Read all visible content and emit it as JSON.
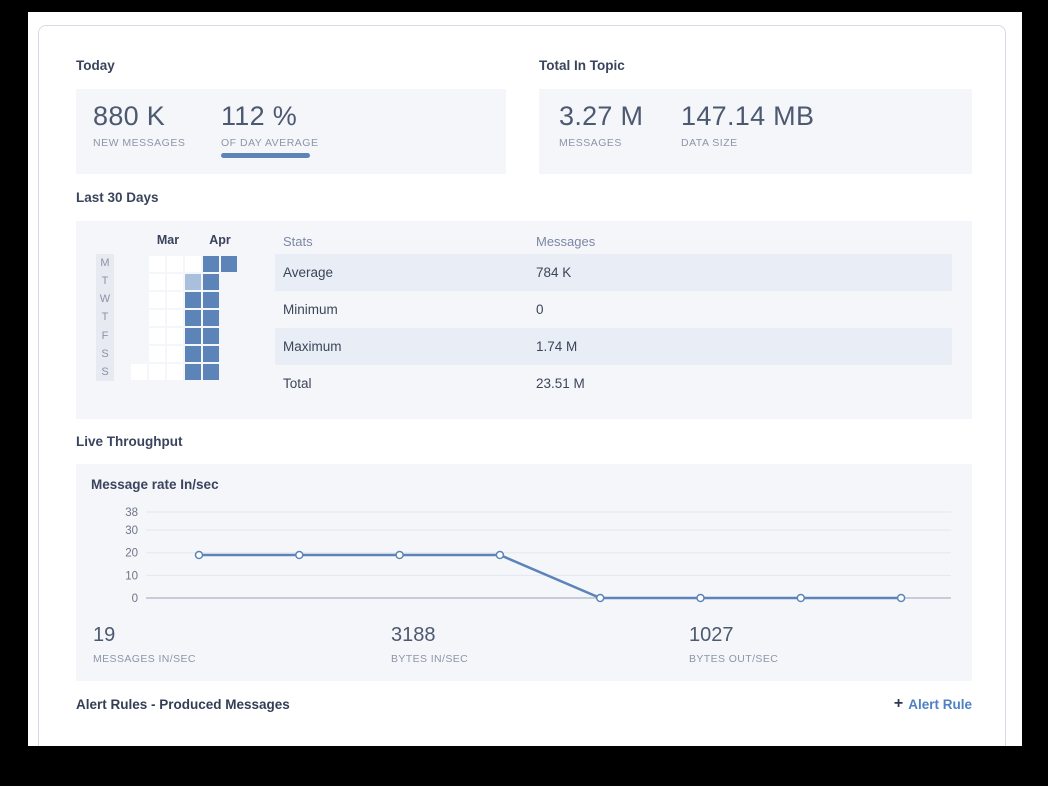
{
  "colors": {
    "accent_blue": "#5c84b8",
    "heat_low": "#ffffff",
    "heat_mid": "#a9c0dc",
    "heat_high": "#5c84b8",
    "link_blue": "#4d80c4",
    "panel_bg": "#f4f6fa",
    "row_tint": "#e9edf6"
  },
  "today": {
    "heading": "Today",
    "stats": [
      {
        "value": "880 K",
        "label": "NEW MESSAGES"
      },
      {
        "value": "112 %",
        "label": "OF DAY AVERAGE"
      }
    ]
  },
  "total_in_topic": {
    "heading": "Total In Topic",
    "stats": [
      {
        "value": "3.27 M",
        "label": "MESSAGES"
      },
      {
        "value": "147.14 MB",
        "label": "DATA SIZE"
      }
    ]
  },
  "last_30_days": {
    "heading": "Last 30 Days",
    "months": [
      "Mar",
      "Apr"
    ],
    "weekdays": [
      "M",
      "T",
      "W",
      "T",
      "F",
      "S",
      "S"
    ],
    "table": {
      "columns": [
        "Stats",
        "Messages"
      ],
      "rows": [
        {
          "stat": "Average",
          "messages": "784 K"
        },
        {
          "stat": "Minimum",
          "messages": "0"
        },
        {
          "stat": "Maximum",
          "messages": "1.74 M"
        },
        {
          "stat": "Total",
          "messages": "23.51 M"
        }
      ]
    }
  },
  "live_throughput": {
    "heading": "Live Throughput",
    "chart_title": "Message rate In/sec",
    "stats": [
      {
        "value": "19",
        "label": "MESSAGES IN/SEC"
      },
      {
        "value": "3188",
        "label": "BYTES IN/SEC"
      },
      {
        "value": "1027",
        "label": "BYTES OUT/SEC"
      }
    ]
  },
  "alert_rules": {
    "heading": "Alert Rules - Produced Messages",
    "add_icon": "+",
    "add_label": "Alert Rule"
  },
  "chart_data": [
    {
      "type": "heatmap",
      "title": "Last 30 Days",
      "rows": [
        "M",
        "T",
        "W",
        "T",
        "F",
        "S",
        "S"
      ],
      "columns": [
        "week1",
        "week2",
        "week3",
        "week4",
        "week5",
        "week6"
      ],
      "month_labels": [
        "Mar",
        "Apr"
      ],
      "value_levels": {
        "0": "white / zero messages",
        "1": "medium",
        "2": "high"
      },
      "grid": [
        [
          null,
          0,
          0,
          0,
          2,
          2
        ],
        [
          null,
          0,
          0,
          1,
          2,
          null
        ],
        [
          null,
          0,
          0,
          2,
          2,
          null
        ],
        [
          null,
          0,
          0,
          2,
          2,
          null
        ],
        [
          null,
          0,
          0,
          2,
          2,
          null
        ],
        [
          null,
          0,
          0,
          2,
          2,
          null
        ],
        [
          0,
          0,
          0,
          2,
          2,
          null
        ]
      ]
    },
    {
      "type": "table",
      "columns": [
        "Stats",
        "Messages"
      ],
      "rows": [
        [
          "Average",
          "784 K"
        ],
        [
          "Minimum",
          "0"
        ],
        [
          "Maximum",
          "1.74 M"
        ],
        [
          "Total",
          "23.51 M"
        ]
      ]
    },
    {
      "type": "line",
      "title": "Message rate In/sec",
      "x": [
        1,
        2,
        3,
        4,
        5,
        6,
        7,
        8
      ],
      "values": [
        19,
        19,
        19,
        19,
        0,
        0,
        0,
        0
      ],
      "ylim": [
        0,
        38
      ],
      "yticks": [
        0,
        10,
        20,
        30,
        38
      ],
      "xlabel": "",
      "ylabel": "",
      "grid": true,
      "legend": "none"
    }
  ]
}
